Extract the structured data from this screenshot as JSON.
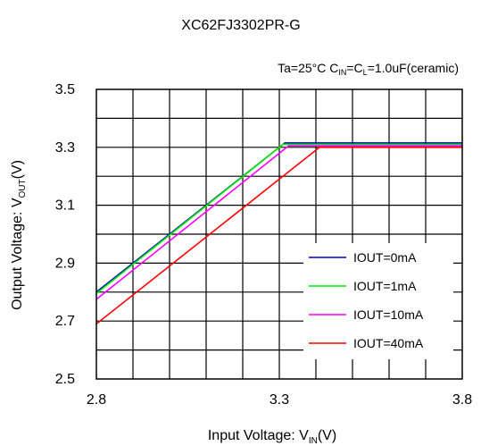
{
  "chart_data": {
    "type": "line",
    "title": "XC62FJ3302PR-G",
    "condition": {
      "ta": "Ta=25°C",
      "c": "C",
      "in": "IN",
      "eq1": "=C",
      "l": "L",
      "rest": "=1.0uF(ceramic)"
    },
    "xlabel": {
      "main": "Input Voltage: V",
      "sub": "IN",
      "unit": "(V)"
    },
    "ylabel": {
      "main": "Output Voltage: V",
      "sub": "OUT",
      "unit": "(V)"
    },
    "xlim": [
      2.8,
      3.8
    ],
    "ylim": [
      2.5,
      3.5
    ],
    "x_ticks": [
      2.8,
      3.3,
      3.8
    ],
    "x_tick_labels": [
      "2.8",
      "3.3",
      "3.8"
    ],
    "y_ticks": [
      2.5,
      2.7,
      2.9,
      3.1,
      3.3,
      3.5
    ],
    "y_tick_labels": [
      "2.5",
      "2.7",
      "2.9",
      "3.1",
      "3.3",
      "3.5"
    ],
    "x_grid_step": 0.1,
    "y_grid_step": 0.1,
    "grid": true,
    "legend_position": "bottom-right",
    "series": [
      {
        "name": "IOUT=0mA",
        "color": "#0000cc",
        "x": [
          2.8,
          3.315,
          3.8
        ],
        "y": [
          2.8,
          3.315,
          3.315
        ]
      },
      {
        "name": "IOUT=1mA",
        "color": "#00ee00",
        "x": [
          2.8,
          3.31,
          3.8
        ],
        "y": [
          2.795,
          3.31,
          3.31
        ]
      },
      {
        "name": "IOUT=10mA",
        "color": "#ff00ff",
        "x": [
          2.8,
          3.325,
          3.8
        ],
        "y": [
          2.775,
          3.305,
          3.305
        ]
      },
      {
        "name": "IOUT=40mA",
        "color": "#ff0000",
        "x": [
          2.8,
          3.41,
          3.8
        ],
        "y": [
          2.69,
          3.3,
          3.3
        ]
      }
    ]
  }
}
